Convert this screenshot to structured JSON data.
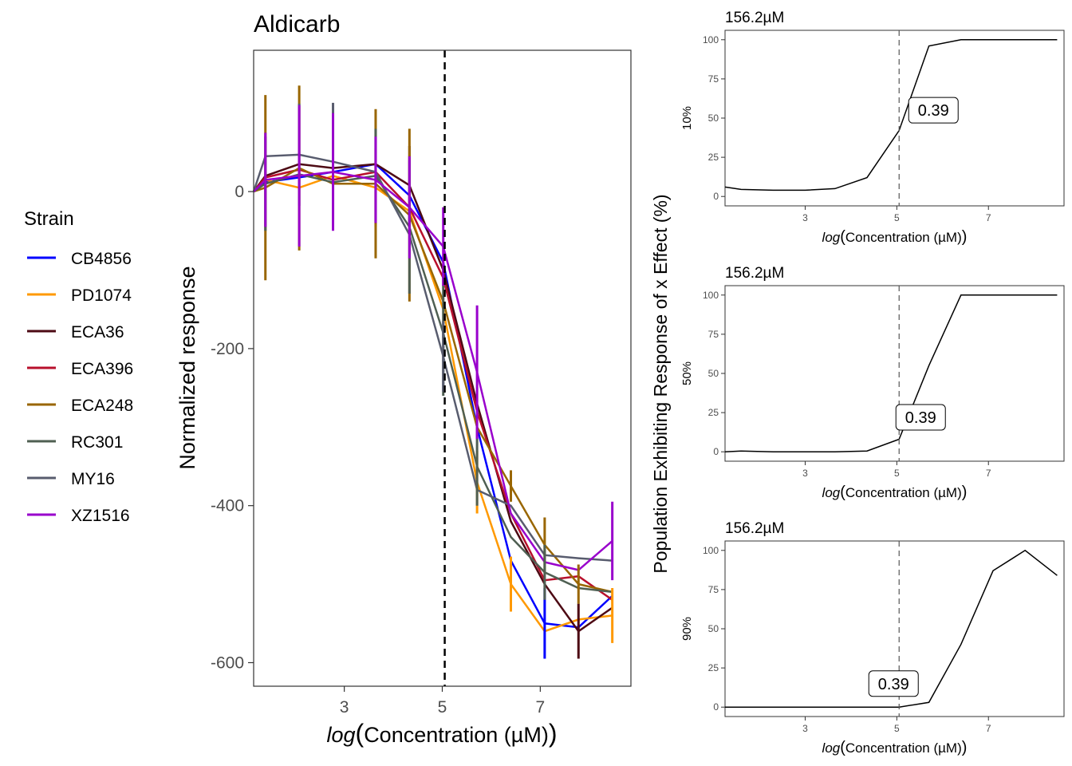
{
  "legend": {
    "title": "Strain",
    "items": [
      {
        "name": "CB4856",
        "color": "#0000ff"
      },
      {
        "name": "PD1074",
        "color": "#ff9900"
      },
      {
        "name": "ECA36",
        "color": "#4d0a14"
      },
      {
        "name": "ECA396",
        "color": "#b8102c"
      },
      {
        "name": "ECA248",
        "color": "#996600"
      },
      {
        "name": "RC301",
        "color": "#4f5f52"
      },
      {
        "name": "MY16",
        "color": "#585c6e"
      },
      {
        "name": "XZ1516",
        "color": "#9900cc"
      }
    ]
  },
  "shared": {
    "outer_ylabel": "Population Exhibiting Response of x Effect (%)",
    "xlabel_prefix": "log",
    "xlabel_body": "Concentration (µM)",
    "ec_line_x": 5.05,
    "ec_label_value": "0.39"
  },
  "chart_data": [
    {
      "type": "line",
      "title": "Aldicarb",
      "xlabel": "log(Concentration (µM))",
      "ylabel": "Normalized response",
      "xlim": [
        1.15,
        8.85
      ],
      "ylim": [
        -630,
        180
      ],
      "xticks": [
        3,
        5,
        7
      ],
      "yticks": [
        0,
        -200,
        -400,
        -600
      ],
      "grid": false,
      "legend": "left",
      "vline": 5.05,
      "x": [
        1.0,
        1.39,
        2.08,
        2.77,
        3.64,
        4.33,
        5.02,
        5.71,
        6.4,
        7.09,
        7.78,
        8.47
      ],
      "series": [
        {
          "name": "CB4856",
          "color": "#0000ff",
          "values": [
            0,
            12,
            18,
            25,
            35,
            -5,
            -90,
            -300,
            -470,
            -550,
            -555,
            -515
          ],
          "err": [
            0,
            0,
            0,
            0,
            0,
            0,
            0,
            0,
            0,
            45,
            0,
            0
          ]
        },
        {
          "name": "PD1074",
          "color": "#ff9900",
          "values": [
            0,
            15,
            5,
            20,
            5,
            -25,
            -150,
            -370,
            -500,
            -560,
            -545,
            -540
          ],
          "err": [
            0,
            0,
            0,
            0,
            50,
            0,
            0,
            40,
            35,
            0,
            0,
            35
          ]
        },
        {
          "name": "ECA36",
          "color": "#4d0a14",
          "values": [
            0,
            20,
            35,
            30,
            35,
            8,
            -100,
            -270,
            -420,
            -500,
            -560,
            -530
          ],
          "err": [
            0,
            0,
            0,
            0,
            0,
            50,
            0,
            0,
            0,
            0,
            35,
            0
          ]
        },
        {
          "name": "ECA396",
          "color": "#b8102c",
          "values": [
            0,
            18,
            28,
            15,
            25,
            -20,
            -110,
            -280,
            -410,
            -495,
            -490,
            -520
          ],
          "err": [
            0,
            0,
            0,
            50,
            0,
            0,
            0,
            0,
            0,
            0,
            0,
            0
          ]
        },
        {
          "name": "ECA248",
          "color": "#996600",
          "values": [
            0,
            5,
            30,
            10,
            10,
            -30,
            -140,
            -300,
            -375,
            -450,
            -500,
            -510
          ],
          "err": [
            0,
            118,
            105,
            0,
            95,
            110,
            0,
            0,
            20,
            35,
            25,
            0
          ]
        },
        {
          "name": "RC301",
          "color": "#4f5f52",
          "values": [
            0,
            10,
            22,
            12,
            20,
            -45,
            -180,
            -350,
            -440,
            -485,
            -505,
            -510
          ],
          "err": [
            0,
            60,
            0,
            0,
            60,
            85,
            80,
            50,
            0,
            35,
            0,
            0
          ]
        },
        {
          "name": "MY16",
          "color": "#585c6e",
          "values": [
            0,
            45,
            47,
            38,
            25,
            -55,
            -210,
            -380,
            -400,
            -463,
            -467,
            -470
          ],
          "err": [
            0,
            0,
            65,
            75,
            0,
            0,
            45,
            0,
            0,
            0,
            0,
            0
          ]
        },
        {
          "name": "XZ1516",
          "color": "#9900cc",
          "values": [
            0,
            15,
            20,
            25,
            15,
            -20,
            -70,
            -230,
            -410,
            -472,
            -482,
            -445
          ],
          "err": [
            0,
            60,
            90,
            75,
            55,
            65,
            50,
            85,
            0,
            0,
            0,
            50
          ]
        }
      ]
    },
    {
      "type": "line",
      "title": "156.2µM",
      "ylabel": "10%",
      "xlabel": "log(Concentration (µM))",
      "xlim": [
        1.25,
        8.65
      ],
      "ylim": [
        -6,
        106
      ],
      "xticks": [
        3,
        5,
        7
      ],
      "yticks": [
        0,
        25,
        50,
        75,
        100
      ],
      "vline": 5.05,
      "label": {
        "text": "0.39",
        "y": 55
      },
      "x": [
        1.25,
        1.6,
        2.3,
        3.0,
        3.65,
        4.35,
        5.05,
        5.7,
        6.4,
        7.1,
        7.8,
        8.5
      ],
      "values": [
        6,
        4.5,
        4,
        4,
        5,
        12,
        42,
        96,
        100,
        100,
        100,
        100
      ]
    },
    {
      "type": "line",
      "title": "156.2µM",
      "ylabel": "50%",
      "xlabel": "log(Concentration (µM))",
      "xlim": [
        1.25,
        8.65
      ],
      "ylim": [
        -6,
        106
      ],
      "xticks": [
        3,
        5,
        7
      ],
      "yticks": [
        0,
        25,
        50,
        75,
        100
      ],
      "vline": 5.05,
      "label": {
        "text": "0.39",
        "y": 22
      },
      "x": [
        1.25,
        1.6,
        2.3,
        3.0,
        3.65,
        4.35,
        5.05,
        5.7,
        6.4,
        7.1,
        7.8,
        8.5
      ],
      "values": [
        0,
        0.5,
        0,
        0,
        0,
        0.5,
        8,
        55,
        100,
        100,
        100,
        100
      ]
    },
    {
      "type": "line",
      "title": "156.2µM",
      "ylabel": "90%",
      "xlabel": "log(Concentration (µM))",
      "xlim": [
        1.25,
        8.65
      ],
      "ylim": [
        -6,
        106
      ],
      "xticks": [
        3,
        5,
        7
      ],
      "yticks": [
        0,
        25,
        50,
        75,
        100
      ],
      "vline": 5.05,
      "label": {
        "text": "0.39",
        "y": 15
      },
      "x": [
        1.25,
        1.6,
        2.3,
        3.0,
        3.65,
        4.35,
        5.05,
        5.7,
        6.4,
        7.1,
        7.8,
        8.5
      ],
      "values": [
        0,
        0,
        0,
        0,
        0,
        0,
        0,
        3,
        40,
        87,
        100,
        84
      ]
    }
  ]
}
